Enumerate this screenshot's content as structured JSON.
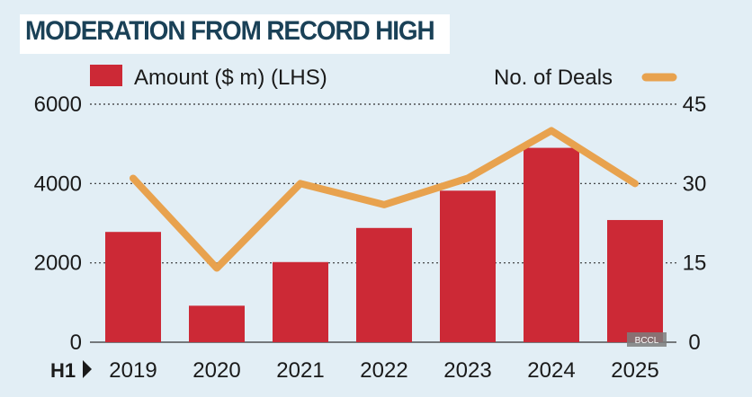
{
  "title": "MODERATION FROM RECORD HIGH",
  "watermark": "BCCL",
  "period_label": "H1",
  "colors": {
    "bar": "#cc2936",
    "line": "#e8a24e",
    "title": "#1a4157",
    "background": "#e2eef5"
  },
  "chart_data": {
    "type": "bar",
    "title": "MODERATION FROM RECORD HIGH",
    "categories": [
      "2019",
      "2020",
      "2021",
      "2022",
      "2023",
      "2024",
      "2025"
    ],
    "series": [
      {
        "name": "Amount ($ m) (LHS)",
        "type": "bar",
        "axis": "left",
        "values": [
          2780,
          920,
          2020,
          2880,
          3820,
          4900,
          3080
        ]
      },
      {
        "name": "No. of Deals",
        "type": "line",
        "axis": "right",
        "values": [
          31,
          14,
          30,
          26,
          31,
          40,
          30
        ]
      }
    ],
    "y_left": {
      "min": 0,
      "max": 6000,
      "ticks": [
        "0",
        "2000",
        "4000",
        "6000"
      ]
    },
    "y_right": {
      "min": 0,
      "max": 45,
      "ticks": [
        "0",
        "15",
        "30",
        "45"
      ]
    },
    "grid": true,
    "legend_position": "top"
  }
}
